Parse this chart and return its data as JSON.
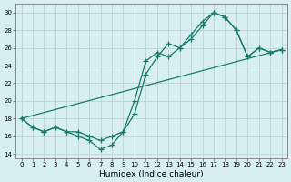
{
  "xlabel": "Humidex (Indice chaleur)",
  "xlim": [
    -0.5,
    23.5
  ],
  "ylim": [
    13.5,
    31
  ],
  "xticks": [
    0,
    1,
    2,
    3,
    4,
    5,
    6,
    7,
    8,
    9,
    10,
    11,
    12,
    13,
    14,
    15,
    16,
    17,
    18,
    19,
    20,
    21,
    22,
    23
  ],
  "yticks": [
    14,
    16,
    18,
    20,
    22,
    24,
    26,
    28,
    30
  ],
  "line_color": "#1a7a6e",
  "bg_color": "#d7eff0",
  "grid_color": "#c0d8da",
  "line1_x": [
    0,
    1,
    2,
    3,
    4,
    5,
    6,
    7,
    8,
    9,
    10,
    11,
    12,
    13,
    14,
    15,
    16,
    17,
    18,
    19,
    20,
    21,
    22,
    23
  ],
  "line1_y": [
    18,
    17,
    16.5,
    17,
    16.5,
    16,
    15.5,
    14.5,
    15,
    16.5,
    18.5,
    23,
    25,
    26.5,
    26,
    27.5,
    29,
    30,
    29.5,
    28,
    25,
    26,
    25.5,
    25.8
  ],
  "line2_x": [
    0,
    1,
    2,
    3,
    4,
    5,
    6,
    7,
    8,
    9,
    10,
    11,
    12,
    13,
    14,
    15,
    16,
    17,
    18,
    19,
    20,
    21,
    22,
    23
  ],
  "line2_y": [
    18,
    17,
    16.5,
    17,
    16.5,
    16.5,
    16,
    15.5,
    16,
    16.5,
    20,
    24.5,
    25.5,
    25,
    26,
    27,
    28.5,
    30,
    29.5,
    28,
    25,
    26,
    25.5,
    25.8
  ],
  "line3_x": [
    0,
    23
  ],
  "line3_y": [
    18,
    25.8
  ]
}
